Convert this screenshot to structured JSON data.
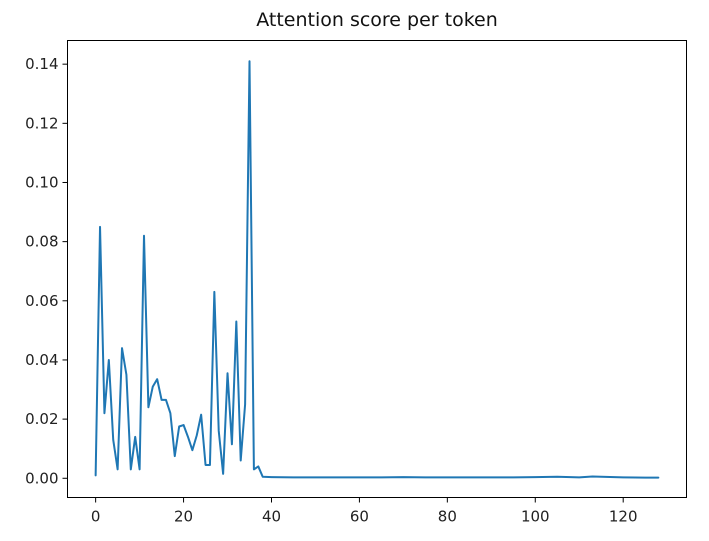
{
  "chart_data": {
    "type": "line",
    "title": "Attention score per token",
    "xlabel": "",
    "ylabel": "",
    "xlim": [
      -6.4,
      134.4
    ],
    "ylim": [
      -0.0065,
      0.148
    ],
    "x_ticks": [
      0,
      20,
      40,
      60,
      80,
      100,
      120
    ],
    "y_ticks": [
      0.0,
      0.02,
      0.04,
      0.06,
      0.08,
      0.1,
      0.12,
      0.14
    ],
    "y_tick_labels": [
      "0.00",
      "0.02",
      "0.04",
      "0.06",
      "0.08",
      "0.10",
      "0.12",
      "0.14"
    ],
    "grid": false,
    "legend": "none",
    "series": [
      {
        "color": "#1f77b4",
        "x": [
          0,
          1,
          2,
          3,
          4,
          5,
          6,
          7,
          8,
          9,
          10,
          11,
          12,
          13,
          14,
          15,
          16,
          17,
          18,
          19,
          20,
          21,
          22,
          23,
          24,
          25,
          26,
          27,
          28,
          29,
          30,
          31,
          32,
          33,
          34,
          35,
          36,
          37,
          38,
          40,
          45,
          50,
          55,
          60,
          65,
          70,
          75,
          80,
          85,
          90,
          95,
          100,
          105,
          110,
          113,
          115,
          120,
          125,
          128
        ],
        "values": [
          0.001,
          0.085,
          0.022,
          0.04,
          0.013,
          0.003,
          0.044,
          0.035,
          0.003,
          0.014,
          0.003,
          0.082,
          0.024,
          0.031,
          0.0335,
          0.0265,
          0.0265,
          0.022,
          0.0075,
          0.0175,
          0.018,
          0.014,
          0.0095,
          0.0145,
          0.0215,
          0.0045,
          0.0045,
          0.063,
          0.016,
          0.0015,
          0.0355,
          0.0115,
          0.053,
          0.006,
          0.025,
          0.141,
          0.003,
          0.004,
          0.0005,
          0.0004,
          0.0003,
          0.0003,
          0.0003,
          0.0003,
          0.0003,
          0.0004,
          0.0003,
          0.0003,
          0.0003,
          0.0003,
          0.0003,
          0.0004,
          0.0005,
          0.0003,
          0.0006,
          0.0005,
          0.0003,
          0.0002,
          0.0002
        ]
      }
    ]
  }
}
